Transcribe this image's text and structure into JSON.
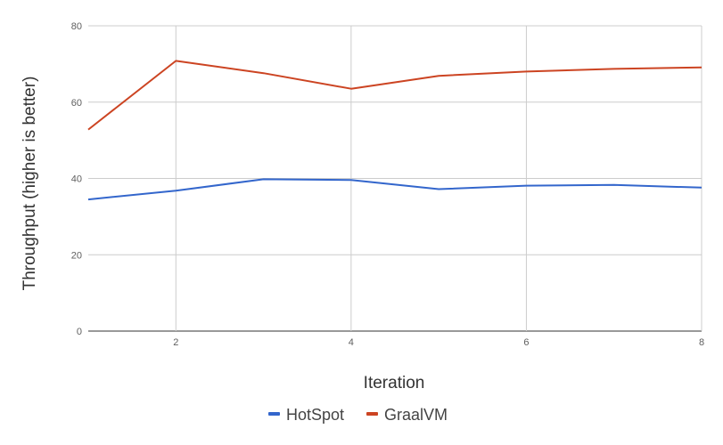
{
  "chart_data": {
    "type": "line",
    "xlabel": "Iteration",
    "ylabel": "Throughput (higher is better)",
    "x": [
      1,
      2,
      3,
      4,
      5,
      6,
      7,
      8
    ],
    "xlim": [
      1,
      8
    ],
    "xticks": [
      2,
      4,
      6,
      8
    ],
    "ylim": [
      0,
      80
    ],
    "yticks": [
      0,
      20,
      40,
      60,
      80
    ],
    "grid": true,
    "legend_position": "bottom",
    "series": [
      {
        "name": "HotSpot",
        "color": "#3366cc",
        "values": [
          34.5,
          36.8,
          39.8,
          39.6,
          37.2,
          38.1,
          38.3,
          37.6
        ]
      },
      {
        "name": "GraalVM",
        "color": "#cc4422",
        "values": [
          52.8,
          70.8,
          67.6,
          63.5,
          66.9,
          68.0,
          68.7,
          69.1
        ]
      }
    ]
  }
}
